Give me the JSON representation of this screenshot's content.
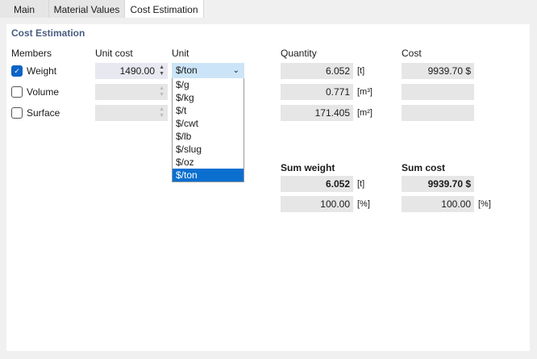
{
  "tabs": [
    {
      "label": "Main"
    },
    {
      "label": "Material Values"
    },
    {
      "label": "Cost Estimation",
      "active": true
    }
  ],
  "section_title": "Cost Estimation",
  "headers": {
    "members": "Members",
    "unit_cost": "Unit cost",
    "unit": "Unit",
    "quantity": "Quantity",
    "cost": "Cost",
    "sum_weight": "Sum weight",
    "sum_cost": "Sum cost"
  },
  "rows": [
    {
      "label": "Weight",
      "checked": true,
      "unit_cost": "1490.00",
      "quantity": "6.052",
      "quantity_unit": "[t]",
      "cost": "9939.70 $"
    },
    {
      "label": "Volume",
      "checked": false,
      "unit_cost": "",
      "quantity": "0.771",
      "quantity_unit": "[m³]",
      "cost": ""
    },
    {
      "label": "Surface",
      "checked": false,
      "unit_cost": "",
      "quantity": "171.405",
      "quantity_unit": "[m²]",
      "cost": ""
    }
  ],
  "unit_dropdown": {
    "selected": "$/ton",
    "options": [
      "$/g",
      "$/kg",
      "$/t",
      "$/cwt",
      "$/lb",
      "$/slug",
      "$/oz",
      "$/ton"
    ]
  },
  "sum_weight": {
    "value": "6.052",
    "unit": "[t]",
    "percent": "100.00",
    "percent_unit": "[%]"
  },
  "sum_cost": {
    "value": "9939.70 $",
    "percent": "100.00",
    "percent_unit": "[%]"
  },
  "colors": {
    "accent": "#0b6fd0",
    "title": "#4a5d80"
  }
}
